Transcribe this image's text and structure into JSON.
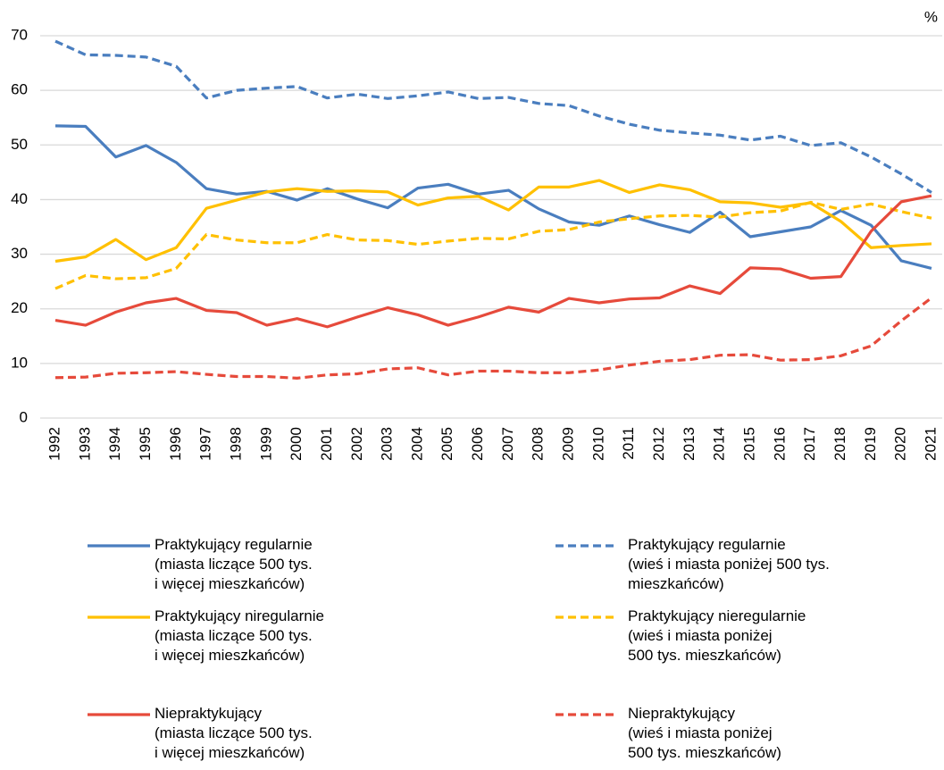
{
  "chart_data": {
    "type": "line",
    "y_unit": "%",
    "categories": [
      "1992",
      "1993",
      "1994",
      "1995",
      "1996",
      "1997",
      "1998",
      "1999",
      "2000",
      "2001",
      "2002",
      "2003",
      "2004",
      "2005",
      "2006",
      "2007",
      "2008",
      "2009",
      "2010",
      "2011",
      "2012",
      "2013",
      "2014",
      "2015",
      "2016",
      "2017",
      "2018",
      "2019",
      "2020",
      "2021"
    ],
    "ylim": [
      0,
      70
    ],
    "yticks": [
      0,
      10,
      20,
      30,
      40,
      50,
      60,
      70
    ],
    "grid": true,
    "series": [
      {
        "name": "Praktykujący regularnie\n(miasta liczące 500 tys.\ni więcej mieszkańców)",
        "color": "#4a7ebf",
        "dashed": false,
        "values": [
          53.5,
          53.4,
          47.8,
          49.9,
          46.8,
          42.0,
          41.0,
          41.5,
          39.9,
          42.0,
          40.1,
          38.5,
          42.1,
          42.8,
          41.0,
          41.7,
          38.3,
          35.9,
          35.3,
          37.0,
          35.4,
          34.0,
          37.7,
          33.2,
          34.1,
          35.0,
          38.0,
          35.3,
          28.8,
          27.4
        ]
      },
      {
        "name": "Praktykujący regularnie\n(wieś i miasta poniżej 500 tys.\nmieszkańców)",
        "color": "#4a7ebf",
        "dashed": true,
        "values": [
          69.0,
          66.5,
          66.4,
          66.1,
          64.4,
          58.6,
          60.0,
          60.4,
          60.7,
          58.6,
          59.3,
          58.5,
          59.0,
          59.7,
          58.5,
          58.7,
          57.6,
          57.2,
          55.3,
          53.8,
          52.7,
          52.2,
          51.8,
          50.9,
          51.6,
          49.9,
          50.4,
          47.8,
          44.7,
          41.3
        ]
      },
      {
        "name": "Praktykujący niregularnie\n(miasta liczące 500 tys.\ni więcej mieszkańców)",
        "color": "#ffc000",
        "dashed": false,
        "values": [
          28.7,
          29.5,
          32.7,
          29.0,
          31.2,
          38.4,
          39.9,
          41.4,
          42.0,
          41.5,
          41.6,
          41.4,
          39.0,
          40.3,
          40.6,
          38.1,
          42.3,
          42.3,
          43.5,
          41.3,
          42.7,
          41.8,
          39.6,
          39.4,
          38.6,
          39.4,
          36.0,
          31.2,
          31.6,
          31.9
        ]
      },
      {
        "name": "Praktykujący nieregularnie\n(wieś i miasta poniżej\n500 tys. mieszkańców)",
        "color": "#ffc000",
        "dashed": true,
        "values": [
          23.7,
          26.1,
          25.5,
          25.7,
          27.4,
          33.6,
          32.6,
          32.1,
          32.1,
          33.6,
          32.6,
          32.5,
          31.8,
          32.4,
          32.9,
          32.8,
          34.2,
          34.5,
          35.9,
          36.5,
          37.0,
          37.1,
          36.8,
          37.6,
          37.9,
          39.5,
          38.2,
          39.2,
          37.8,
          36.6
        ]
      },
      {
        "name": "Niepraktykujący\n(miasta liczące 500 tys.\ni więcej mieszkańców)",
        "color": "#e64a3b",
        "dashed": false,
        "values": [
          17.9,
          17.0,
          19.4,
          21.1,
          21.9,
          19.7,
          19.3,
          17.0,
          18.2,
          16.7,
          18.5,
          20.2,
          18.9,
          17.0,
          18.5,
          20.3,
          19.4,
          21.9,
          21.1,
          21.8,
          22.0,
          24.2,
          22.8,
          27.5,
          27.3,
          25.6,
          25.9,
          34.2,
          39.6,
          40.7
        ]
      },
      {
        "name": "Niepraktykujący\n(wieś i miasta poniżej\n500 tys. mieszkańców)",
        "color": "#e64a3b",
        "dashed": true,
        "values": [
          7.4,
          7.5,
          8.2,
          8.3,
          8.5,
          8.0,
          7.6,
          7.6,
          7.3,
          7.9,
          8.1,
          9.0,
          9.2,
          7.9,
          8.6,
          8.6,
          8.3,
          8.3,
          8.8,
          9.7,
          10.4,
          10.7,
          11.5,
          11.6,
          10.6,
          10.7,
          11.4,
          13.2,
          17.8,
          22.0
        ]
      }
    ]
  }
}
